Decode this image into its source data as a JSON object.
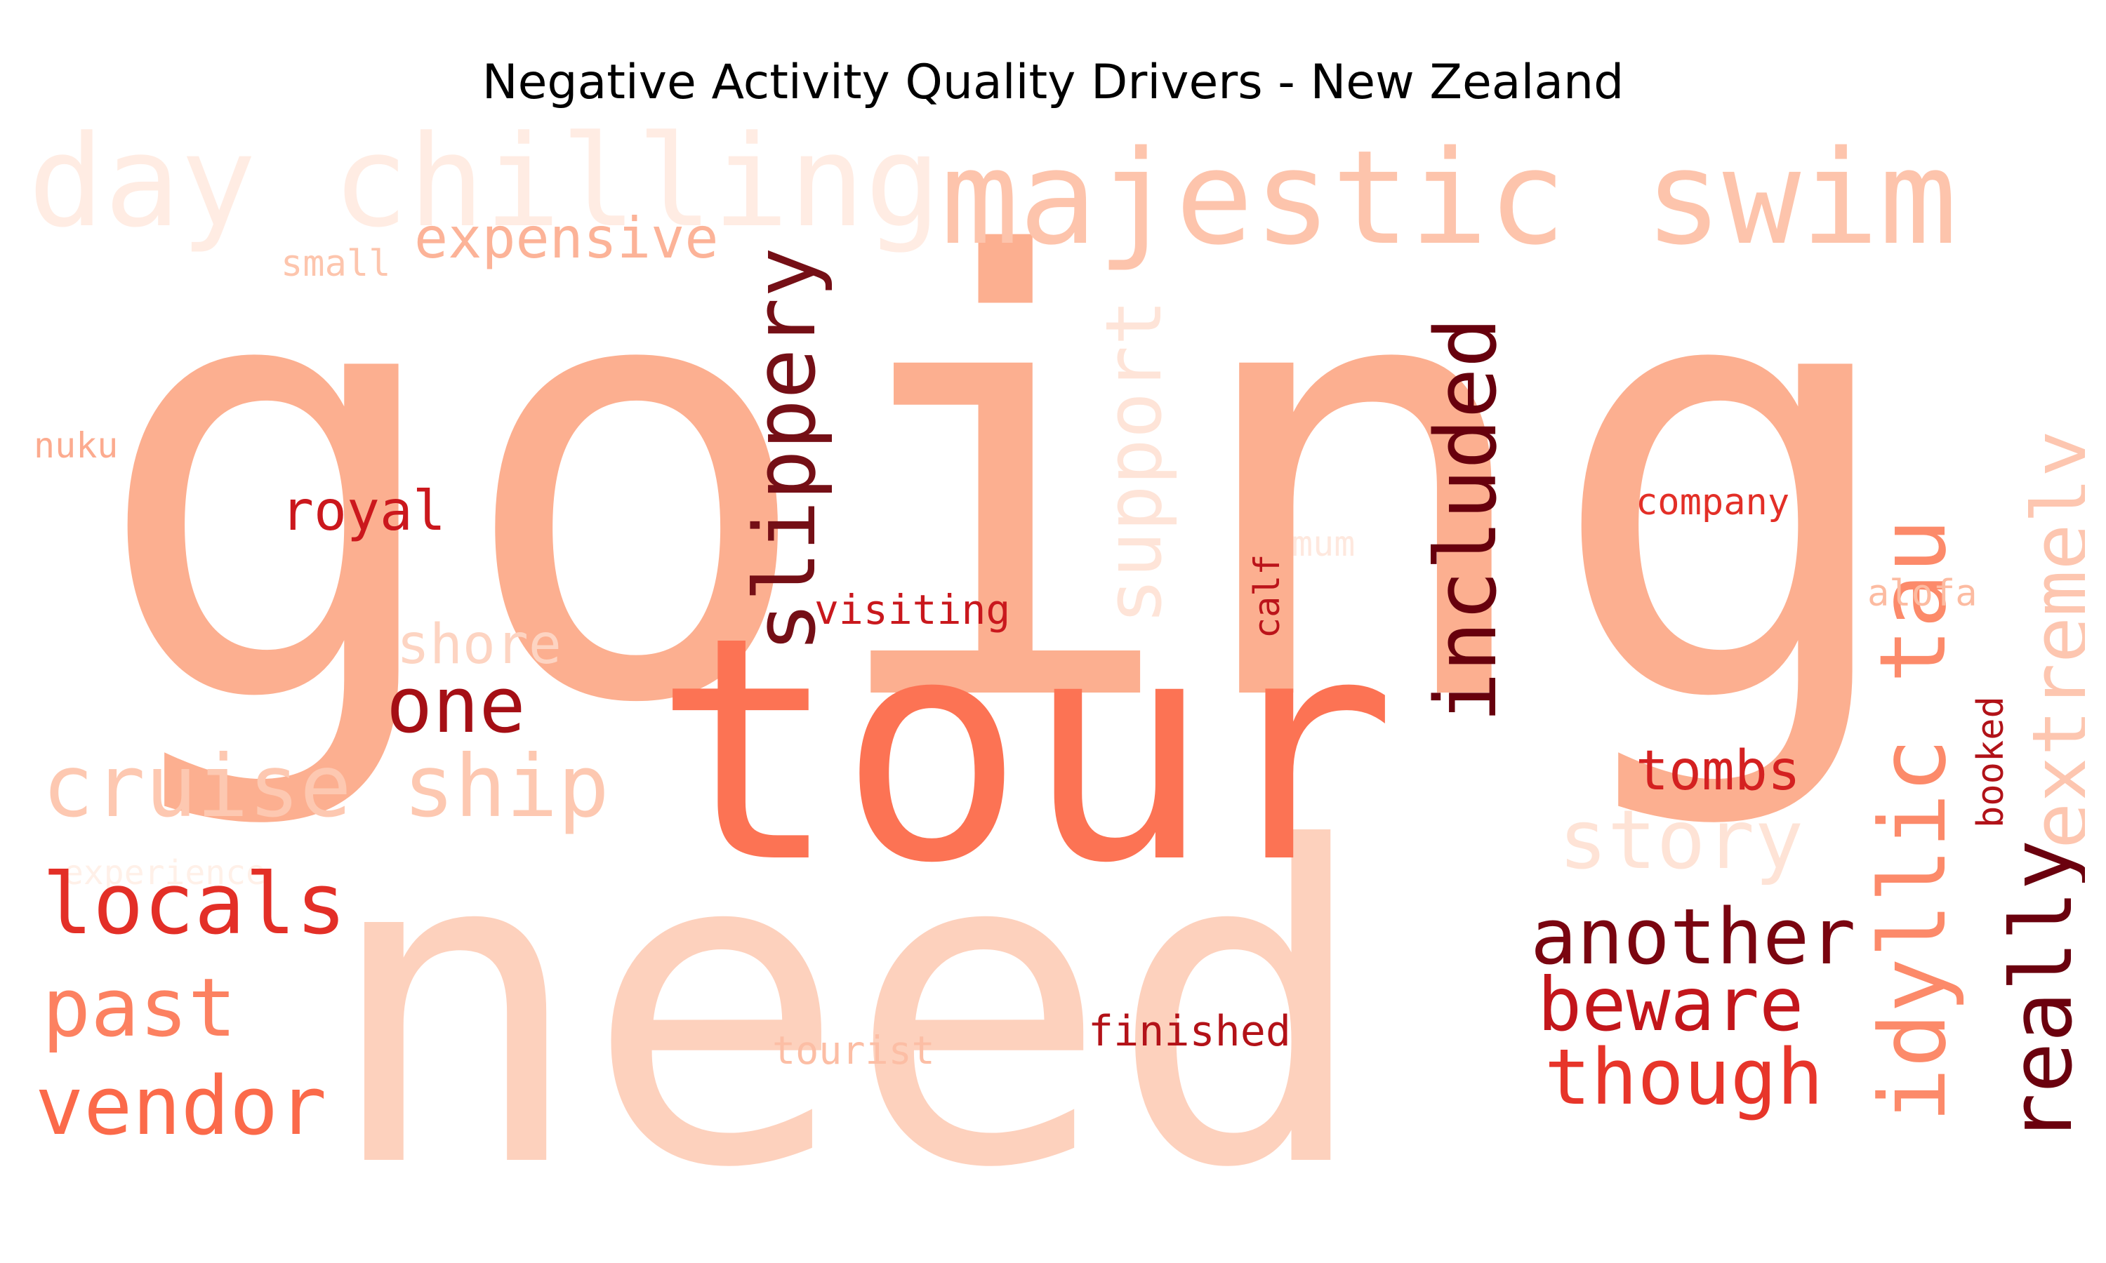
{
  "title": "Negative Activity Quality Drivers - New Zealand",
  "words": [
    {
      "text": "going",
      "color": "#fcaf90",
      "orientation": "horizontal"
    },
    {
      "text": "need",
      "color": "#fdd1bd",
      "orientation": "horizontal"
    },
    {
      "text": "tour",
      "color": "#fc7354",
      "orientation": "horizontal"
    },
    {
      "text": "day chilling",
      "color": "#ffece3",
      "orientation": "horizontal"
    },
    {
      "text": "majestic swim",
      "color": "#fdc4ac",
      "orientation": "horizontal"
    },
    {
      "text": "expensive",
      "color": "#fcb398",
      "orientation": "horizontal"
    },
    {
      "text": "small",
      "color": "#fdc5ad",
      "orientation": "horizontal"
    },
    {
      "text": "slippery",
      "color": "#750f16",
      "orientation": "vertical"
    },
    {
      "text": "support",
      "color": "#fee4d8",
      "orientation": "vertical"
    },
    {
      "text": "included",
      "color": "#67000d",
      "orientation": "vertical"
    },
    {
      "text": "idyllic tau",
      "color": "#fc8a6a",
      "orientation": "vertical"
    },
    {
      "text": "extremely",
      "color": "#fdc6b0",
      "orientation": "vertical"
    },
    {
      "text": "really",
      "color": "#6b010e",
      "orientation": "vertical"
    },
    {
      "text": "nuku",
      "color": "#fcab8f",
      "orientation": "horizontal"
    },
    {
      "text": "royal",
      "color": "#cb181d",
      "orientation": "horizontal"
    },
    {
      "text": "company",
      "color": "#e32f27",
      "orientation": "horizontal"
    },
    {
      "text": "mum",
      "color": "#fee8de",
      "orientation": "horizontal"
    },
    {
      "text": "calf",
      "color": "#bb141a",
      "orientation": "vertical"
    },
    {
      "text": "alofa",
      "color": "#fcbba1",
      "orientation": "horizontal"
    },
    {
      "text": "visiting",
      "color": "#c9181d",
      "orientation": "horizontal"
    },
    {
      "text": "shore",
      "color": "#fdd4c2",
      "orientation": "horizontal"
    },
    {
      "text": "one",
      "color": "#a50f15",
      "orientation": "horizontal"
    },
    {
      "text": "cruise ship",
      "color": "#fdc8b1",
      "orientation": "horizontal"
    },
    {
      "text": "experience",
      "color": "#fff0e8",
      "orientation": "horizontal"
    },
    {
      "text": "tombs",
      "color": "#d42121",
      "orientation": "horizontal"
    },
    {
      "text": "story",
      "color": "#fee3d6",
      "orientation": "horizontal"
    },
    {
      "text": "booked",
      "color": "#b11218",
      "orientation": "vertical"
    },
    {
      "text": "locals",
      "color": "#e32f27",
      "orientation": "horizontal"
    },
    {
      "text": "another",
      "color": "#7a0510",
      "orientation": "horizontal"
    },
    {
      "text": "beware",
      "color": "#c3161b",
      "orientation": "horizontal"
    },
    {
      "text": "past",
      "color": "#fc8161",
      "orientation": "horizontal"
    },
    {
      "text": "though",
      "color": "#e7352a",
      "orientation": "horizontal"
    },
    {
      "text": "vendor",
      "color": "#fb6a4a",
      "orientation": "horizontal"
    },
    {
      "text": "tourist",
      "color": "#fcbea5",
      "orientation": "horizontal"
    },
    {
      "text": "finished",
      "color": "#b31218",
      "orientation": "horizontal"
    }
  ]
}
